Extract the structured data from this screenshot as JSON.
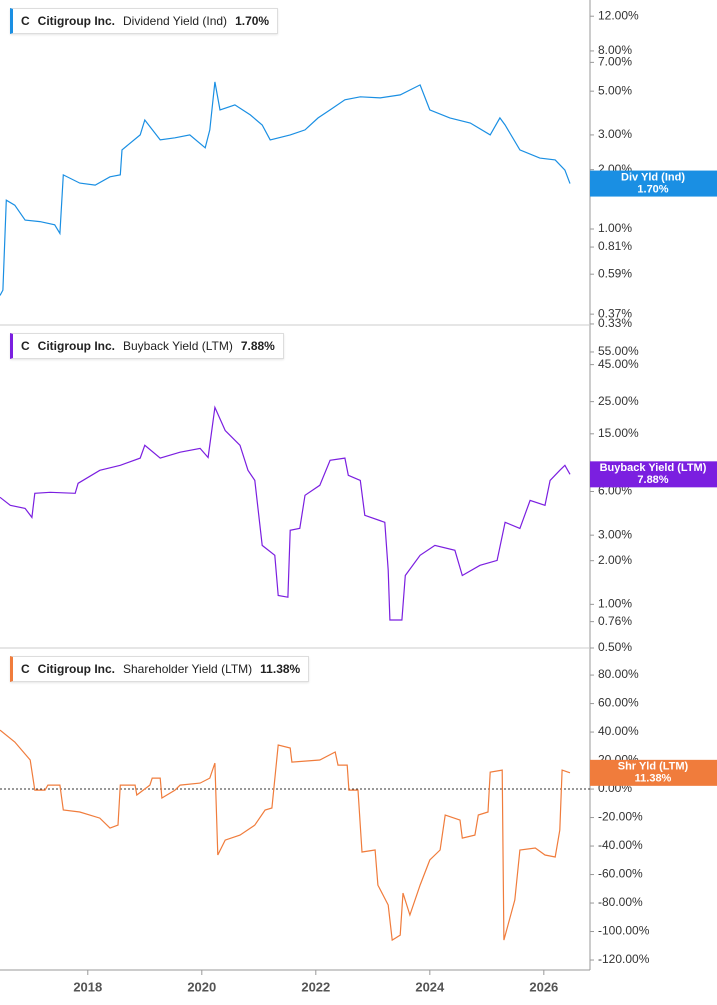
{
  "chart_data": [
    {
      "type": "line",
      "log_scale": true,
      "ticker": "C",
      "company": "Citigroup Inc.",
      "xlim": [
        2016.46,
        2026.81
      ],
      "ylim": [
        0.326,
        14.5
      ],
      "yticks": [
        {
          "value": 12,
          "label": "12.00%"
        },
        {
          "value": 8,
          "label": "8.00%"
        },
        {
          "value": 7,
          "label": "7.00%"
        },
        {
          "value": 5,
          "label": "5.00%"
        },
        {
          "value": 3,
          "label": "3.00%"
        },
        {
          "value": 2,
          "label": "2.00%"
        },
        {
          "value": 1,
          "label": "1.00%"
        },
        {
          "value": 0.81,
          "label": "0.81%"
        },
        {
          "value": 0.59,
          "label": "0.59%"
        },
        {
          "value": 0.37,
          "label": "0.37%"
        },
        {
          "value": 0.33,
          "label": "0.33%"
        }
      ],
      "x": [
        2016.46,
        2016.51,
        2016.57,
        2016.72,
        2016.9,
        2017.16,
        2017.42,
        2017.51,
        2017.57,
        2017.86,
        2018.13,
        2018.39,
        2018.57,
        2018.6,
        2018.92,
        2019.0,
        2019.27,
        2019.53,
        2019.79,
        2020.06,
        2020.14,
        2020.23,
        2020.32,
        2020.58,
        2020.85,
        2021.06,
        2021.2,
        2021.55,
        2021.81,
        2022.04,
        2022.25,
        2022.51,
        2022.78,
        2023.13,
        2023.48,
        2023.83,
        2024.0,
        2024.35,
        2024.71,
        2025.06,
        2025.23,
        2025.32,
        2025.58,
        2025.93,
        2026.2,
        2026.37,
        2026.46
      ],
      "series": [
        {
          "name": "Dividend Yield (Ind)",
          "color": "#1a8fe3",
          "values": [
            0.46,
            0.49,
            1.4,
            1.32,
            1.11,
            1.09,
            1.05,
            0.95,
            1.88,
            1.71,
            1.67,
            1.84,
            1.88,
            2.52,
            3.0,
            3.57,
            2.83,
            2.9,
            3.0,
            2.58,
            3.18,
            5.57,
            4.02,
            4.26,
            3.79,
            3.37,
            2.83,
            3.0,
            3.18,
            3.66,
            4.02,
            4.52,
            4.68,
            4.62,
            4.79,
            5.38,
            4.02,
            3.66,
            3.45,
            3.0,
            3.66,
            3.37,
            2.52,
            2.29,
            2.24,
            1.99,
            1.7
          ]
        }
      ],
      "end_label": {
        "name": "Div Yld (Ind)",
        "value": 1.7,
        "label": "1.70%"
      }
    },
    {
      "type": "line",
      "log_scale": true,
      "ticker": "C",
      "company": "Citigroup Inc.",
      "xlim": [
        2016.46,
        2026.81
      ],
      "ylim": [
        0.5,
        84.4
      ],
      "yticks": [
        {
          "value": 55,
          "label": "55.00%"
        },
        {
          "value": 45,
          "label": "45.00%"
        },
        {
          "value": 25,
          "label": "25.00%"
        },
        {
          "value": 15,
          "label": "15.00%"
        },
        {
          "value": 6,
          "label": "6.00%"
        },
        {
          "value": 3,
          "label": "3.00%"
        },
        {
          "value": 2,
          "label": "2.00%"
        },
        {
          "value": 1,
          "label": "1.00%"
        },
        {
          "value": 0.76,
          "label": "0.76%"
        },
        {
          "value": 0.5,
          "label": "0.50%"
        }
      ],
      "x": [
        2016.46,
        2016.64,
        2016.9,
        2017.02,
        2017.07,
        2017.34,
        2017.78,
        2017.83,
        2018.21,
        2018.57,
        2018.92,
        2019.0,
        2019.27,
        2019.62,
        2019.97,
        2020.11,
        2020.23,
        2020.41,
        2020.67,
        2020.81,
        2020.93,
        2021.06,
        2021.28,
        2021.34,
        2021.51,
        2021.55,
        2021.72,
        2021.81,
        2022.07,
        2022.25,
        2022.51,
        2022.57,
        2022.78,
        2022.86,
        2023.21,
        2023.27,
        2023.3,
        2023.51,
        2023.57,
        2023.83,
        2024.09,
        2024.44,
        2024.57,
        2024.88,
        2025.18,
        2025.32,
        2025.58,
        2025.76,
        2026.02,
        2026.11,
        2026.28,
        2026.37,
        2026.46
      ],
      "series": [
        {
          "name": "Buyback Yield (LTM)",
          "color": "#7b1fe0",
          "values": [
            5.47,
            4.82,
            4.59,
            3.98,
            5.83,
            5.92,
            5.83,
            6.83,
            8.4,
            9.09,
            10.2,
            12.5,
            10.2,
            11.2,
            11.9,
            10.3,
            22.8,
            15.8,
            12.5,
            8.4,
            7.16,
            2.55,
            2.18,
            1.15,
            1.12,
            3.24,
            3.34,
            5.65,
            6.62,
            9.84,
            10.2,
            7.76,
            7.16,
            4.11,
            3.68,
            1.72,
            0.78,
            0.78,
            1.58,
            2.18,
            2.55,
            2.36,
            1.58,
            1.86,
            2.01,
            3.68,
            3.34,
            5.21,
            4.82,
            7.16,
            8.4,
            9.09,
            7.88
          ]
        }
      ],
      "end_label": {
        "name": "Buyback Yield (LTM)",
        "value": 7.88,
        "label": "7.88%"
      }
    },
    {
      "type": "line",
      "log_scale": false,
      "zero_line": true,
      "ticker": "C",
      "company": "Citigroup Inc.",
      "xlim": [
        2016.46,
        2026.81
      ],
      "ylim": [
        -127,
        99
      ],
      "xticks": [
        2018,
        2020,
        2022,
        2024,
        2026
      ],
      "yticks": [
        {
          "value": 80,
          "label": "80.00%"
        },
        {
          "value": 60,
          "label": "60.00%"
        },
        {
          "value": 40,
          "label": "40.00%"
        },
        {
          "value": 20,
          "label": "20.00%"
        },
        {
          "value": 0,
          "label": "0.00%"
        },
        {
          "value": -20,
          "label": "-20.00%"
        },
        {
          "value": -40,
          "label": "-40.00%"
        },
        {
          "value": -60,
          "label": "-60.00%"
        },
        {
          "value": -80,
          "label": "-80.00%"
        },
        {
          "value": -100,
          "label": "-100.00%"
        },
        {
          "value": -120,
          "label": "-120.00%"
        }
      ],
      "x": [
        2016.46,
        2016.72,
        2016.99,
        2017.07,
        2017.25,
        2017.3,
        2017.51,
        2017.57,
        2017.86,
        2018.21,
        2018.39,
        2018.53,
        2018.57,
        2018.83,
        2018.86,
        2019.09,
        2019.13,
        2019.27,
        2019.3,
        2019.53,
        2019.62,
        2019.97,
        2020.14,
        2020.23,
        2020.28,
        2020.41,
        2020.67,
        2020.93,
        2021.11,
        2021.23,
        2021.34,
        2021.55,
        2021.58,
        2022.07,
        2022.34,
        2022.39,
        2022.55,
        2022.58,
        2022.74,
        2022.81,
        2023.04,
        2023.09,
        2023.27,
        2023.34,
        2023.48,
        2023.53,
        2023.65,
        2023.83,
        2024.0,
        2024.18,
        2024.27,
        2024.53,
        2024.57,
        2024.79,
        2024.85,
        2025.02,
        2025.06,
        2025.27,
        2025.3,
        2025.49,
        2025.58,
        2025.85,
        2026.02,
        2026.2,
        2026.28,
        2026.32,
        2026.46
      ],
      "series": [
        {
          "name": "Shareholder Yield (LTM)",
          "color": "#f07c3c",
          "values": [
            41.4,
            33.0,
            20.4,
            -0.7,
            -0.7,
            2.8,
            2.8,
            -14.7,
            -16.1,
            -20.4,
            -27.4,
            -25.3,
            2.8,
            2.8,
            -4.2,
            2.8,
            7.7,
            7.7,
            -6.3,
            -0.7,
            2.8,
            4.2,
            7.7,
            18.2,
            -46.3,
            -35.8,
            -32.3,
            -25.3,
            -14.7,
            -13.3,
            30.9,
            28.8,
            18.9,
            20.4,
            26.0,
            16.8,
            16.8,
            -0.7,
            -0.7,
            -44.2,
            -42.8,
            -67.4,
            -81.4,
            -106,
            -102.5,
            -73.0,
            -88.4,
            -67.4,
            -49.8,
            -42.8,
            -18.2,
            -21.8,
            -34.4,
            -32.3,
            -18.2,
            -16.1,
            11.9,
            13.3,
            -106,
            -77.9,
            -42.8,
            -41.4,
            -46.3,
            -47.7,
            -28.8,
            13.3,
            11.38
          ]
        }
      ],
      "end_label": {
        "name": "Shr Yld (LTM)",
        "value": 11.38,
        "label": "11.38%"
      }
    }
  ]
}
